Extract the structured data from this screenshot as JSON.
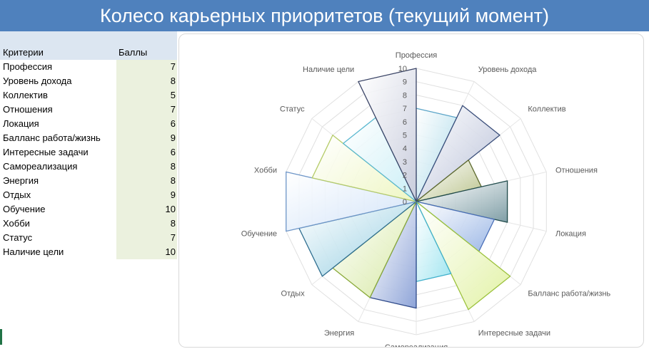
{
  "title": "Колесо карьерных приоритетов (текущий момент)",
  "table": {
    "header_criteria": "Критерии",
    "header_scores": "Баллы",
    "rows": [
      {
        "name": "Профессия",
        "score": "7"
      },
      {
        "name": "Уровень дохода",
        "score": "8"
      },
      {
        "name": "Коллектив",
        "score": "5"
      },
      {
        "name": "Отношения",
        "score": "7"
      },
      {
        "name": "Локация",
        "score": "6"
      },
      {
        "name": "Балланс работа/жизнь",
        "score": "9"
      },
      {
        "name": "Интересные задачи",
        "score": "6"
      },
      {
        "name": "Самореализация",
        "score": "8"
      },
      {
        "name": "Энергия",
        "score": "8"
      },
      {
        "name": "Отдых",
        "score": "9"
      },
      {
        "name": "Обучение",
        "score": "10"
      },
      {
        "name": "Хобби",
        "score": "8"
      },
      {
        "name": "Статус",
        "score": "7"
      },
      {
        "name": "Наличие цели",
        "score": "10"
      }
    ]
  },
  "chart_data": {
    "type": "radar",
    "categories": [
      "Профессия",
      "Уровень дохода",
      "Коллектив",
      "Отношения",
      "Локация",
      "Балланс работа/жизнь",
      "Интересные задачи",
      "Самореализация",
      "Энергия",
      "Отдых",
      "Обучение",
      "Хобби",
      "Статус",
      "Наличие цели"
    ],
    "values": [
      7,
      8,
      5,
      7,
      6,
      9,
      6,
      8,
      8,
      9,
      10,
      8,
      7,
      10
    ],
    "rlim": [
      0,
      10
    ],
    "ticks": [
      "0",
      "1",
      "2",
      "3",
      "4",
      "5",
      "6",
      "7",
      "8",
      "9",
      "10"
    ],
    "grid": true,
    "legend": "none",
    "colors": [
      "#a6d8e8",
      "#b5bdd6",
      "#b9c28a",
      "#7f9ea6",
      "#9bb7e6",
      "#e2f2a5",
      "#9fe5f0",
      "#8ea4d8",
      "#d5e8a0",
      "#8fcbe0",
      "#d0e2f8",
      "#eef6c2",
      "#c9eef6",
      "#c8ccdc"
    ],
    "edge_colors": [
      "#5aa4c8",
      "#3a4e7a",
      "#5e6a2e",
      "#1f4a4a",
      "#4a6fb8",
      "#9cc23c",
      "#3fb0cc",
      "#2f4a8a",
      "#8aaa3a",
      "#2e6e90",
      "#6e96c8",
      "#b6cc6a",
      "#5ab8d0",
      "#3a4466"
    ]
  }
}
